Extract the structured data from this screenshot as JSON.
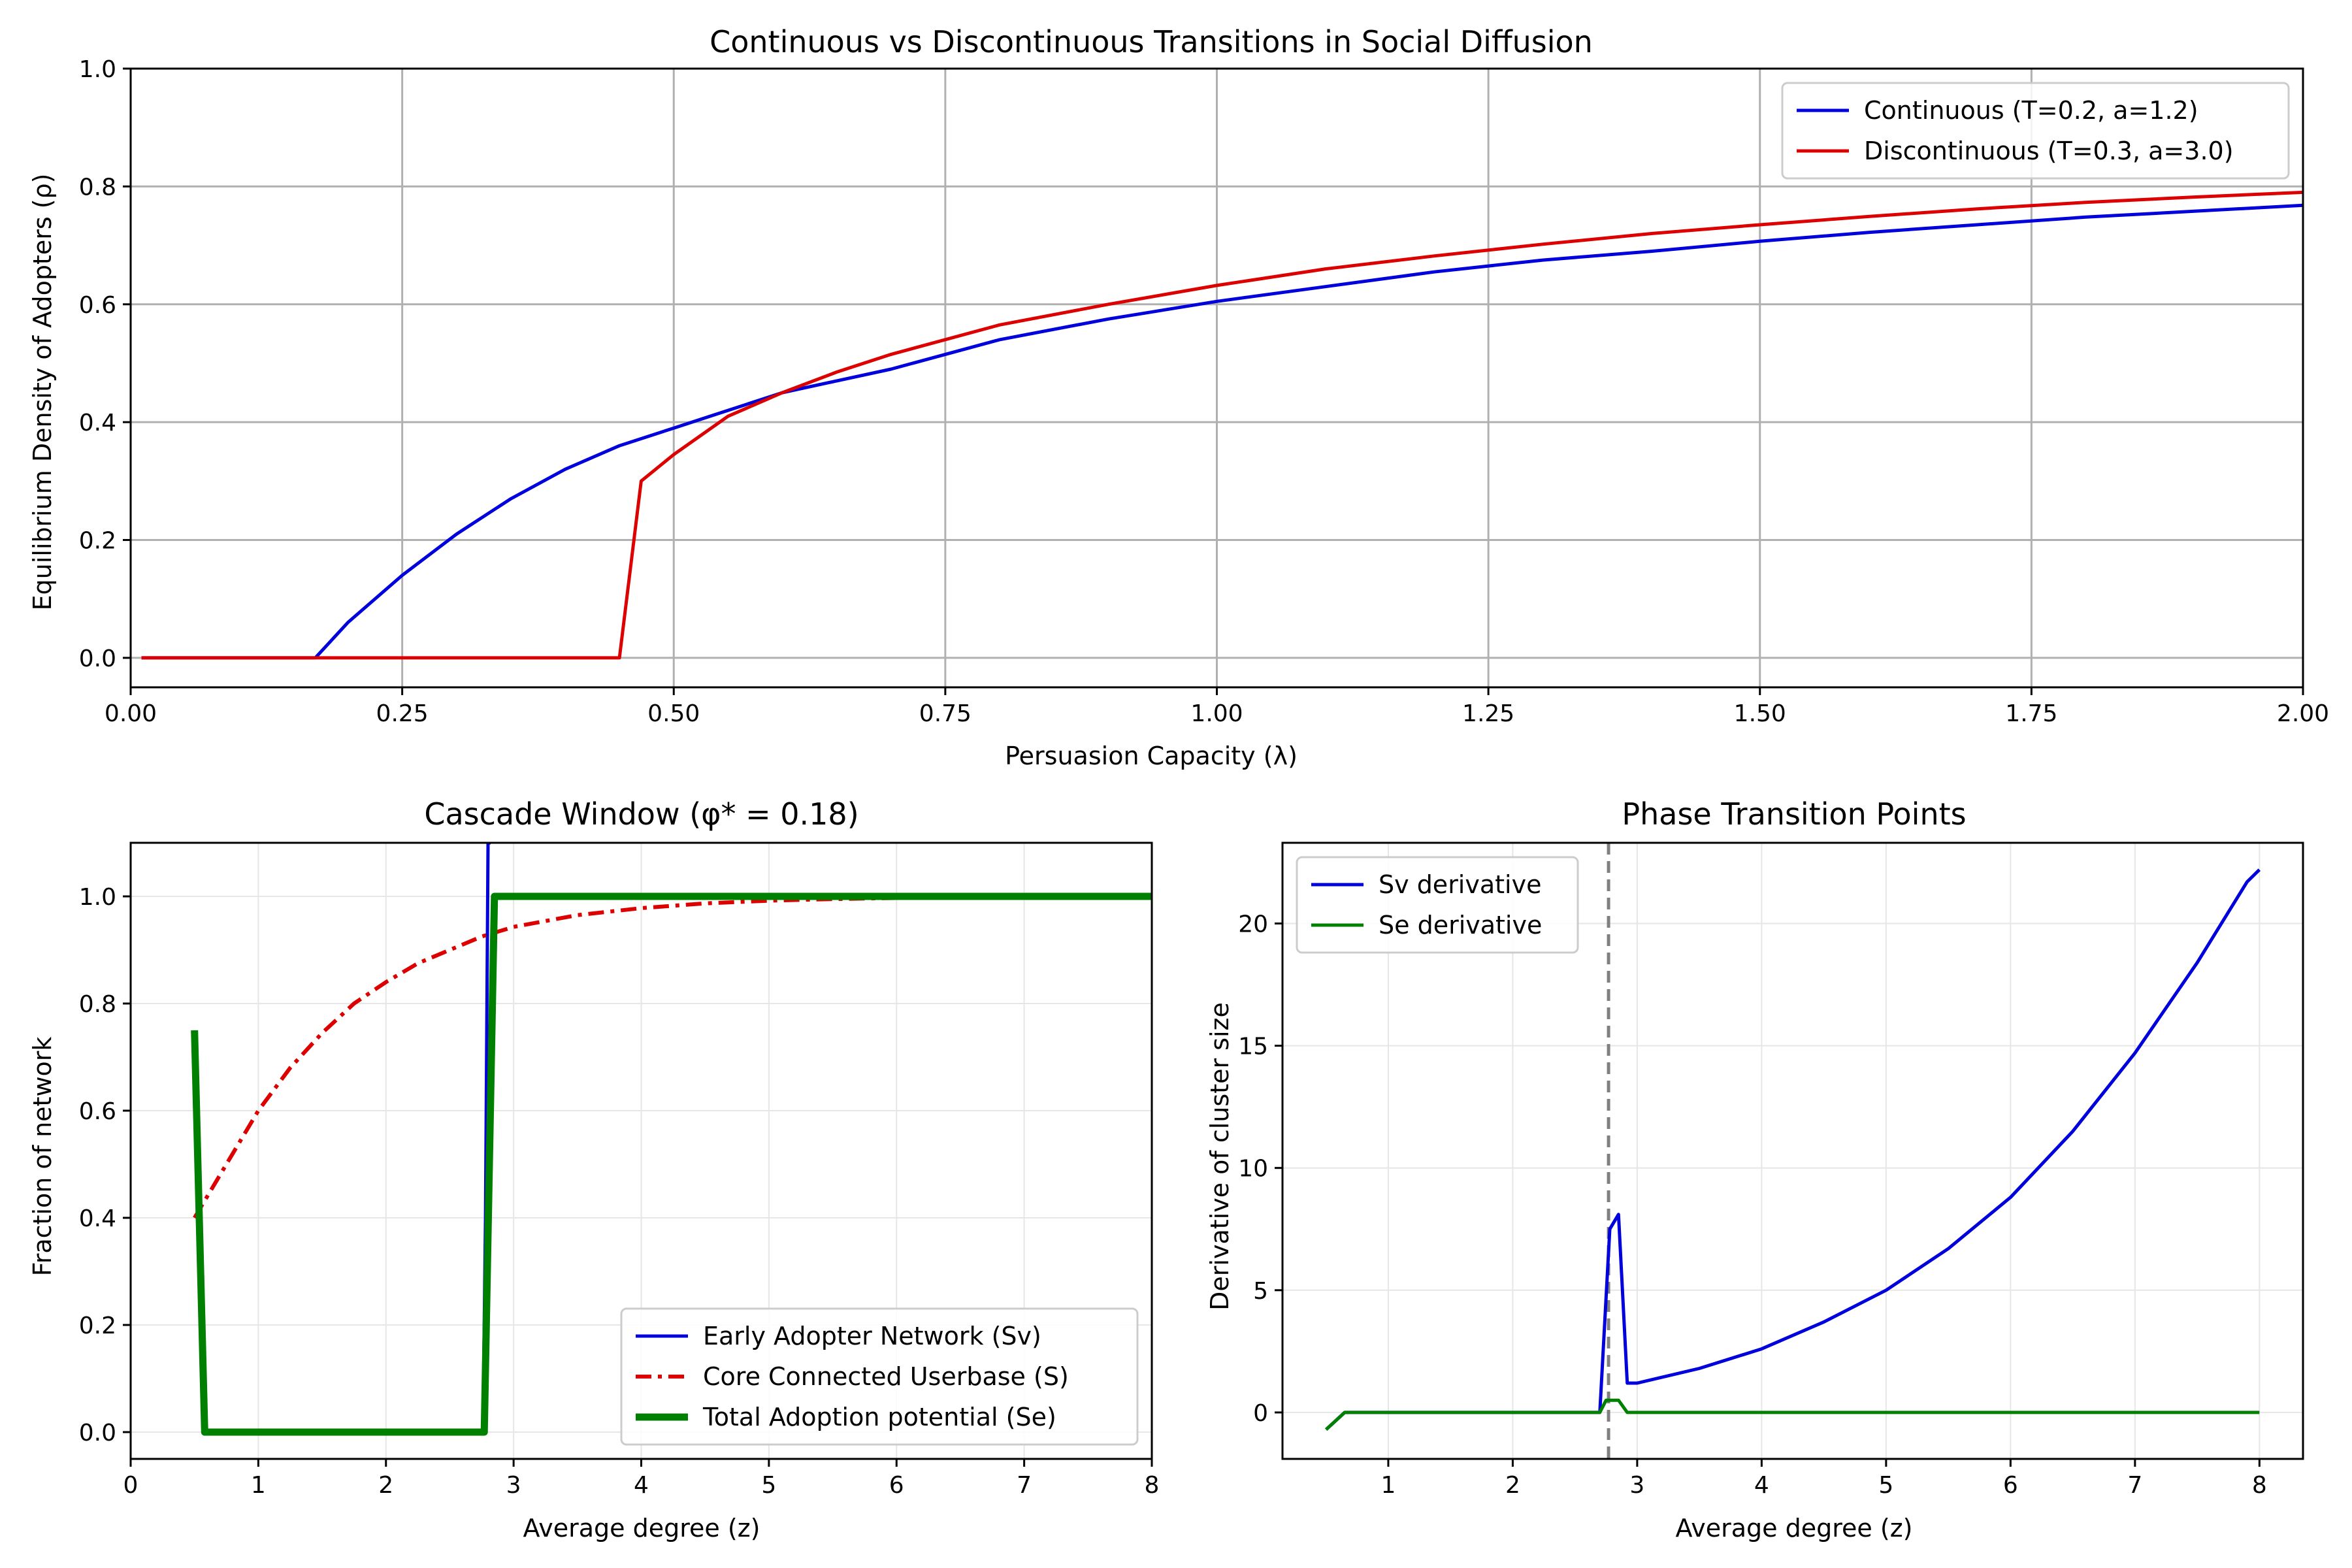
{
  "chart_data": [
    {
      "type": "line",
      "title": "Continuous vs Discontinuous Transitions in Social Diffusion",
      "xlabel": "Persuasion Capacity (λ)",
      "ylabel": "Equilibrium Density of Adopters (ρ)",
      "xlim": [
        0,
        2
      ],
      "ylim": [
        -0.05,
        1.0
      ],
      "xticks": [
        0,
        0.25,
        0.5,
        0.75,
        1.0,
        1.25,
        1.5,
        1.75,
        2.0
      ],
      "xtick_labels": [
        "0.00",
        "0.25",
        "0.50",
        "0.75",
        "1.00",
        "1.25",
        "1.50",
        "1.75",
        "2.00"
      ],
      "yticks": [
        0,
        0.2,
        0.4,
        0.6,
        0.8,
        1.0
      ],
      "ytick_labels": [
        "0.0",
        "0.2",
        "0.4",
        "0.6",
        "0.8",
        "1.0"
      ],
      "grid": true,
      "legend": "top-right",
      "series": [
        {
          "name": "Continuous (T=0.2, a=1.2)",
          "color": "#0000dd",
          "x": [
            0.01,
            0.17,
            0.2,
            0.25,
            0.3,
            0.35,
            0.4,
            0.45,
            0.5,
            0.6,
            0.7,
            0.8,
            0.9,
            1.0,
            1.1,
            1.2,
            1.3,
            1.4,
            1.5,
            1.6,
            1.7,
            1.8,
            1.9,
            2.0
          ],
          "y": [
            0.0,
            0.0,
            0.06,
            0.14,
            0.21,
            0.27,
            0.32,
            0.36,
            0.39,
            0.45,
            0.49,
            0.54,
            0.575,
            0.605,
            0.63,
            0.655,
            0.675,
            0.69,
            0.707,
            0.722,
            0.735,
            0.748,
            0.758,
            0.768
          ]
        },
        {
          "name": "Discontinuous (T=0.3, a=3.0)",
          "color": "#dd0000",
          "x": [
            0.01,
            0.45,
            0.47,
            0.5,
            0.55,
            0.6,
            0.65,
            0.7,
            0.8,
            0.9,
            1.0,
            1.1,
            1.2,
            1.3,
            1.4,
            1.5,
            1.6,
            1.7,
            1.8,
            1.9,
            2.0
          ],
          "y": [
            0.0,
            0.0,
            0.3,
            0.345,
            0.41,
            0.45,
            0.485,
            0.515,
            0.565,
            0.6,
            0.632,
            0.66,
            0.682,
            0.702,
            0.72,
            0.735,
            0.749,
            0.762,
            0.773,
            0.782,
            0.79
          ]
        }
      ]
    },
    {
      "type": "line",
      "title": "Cascade Window (φ* = 0.18)",
      "xlabel": "Average degree (z)",
      "ylabel": "Fraction of network",
      "xlim": [
        0,
        8
      ],
      "ylim": [
        -0.05,
        1.1
      ],
      "xticks": [
        0,
        1,
        2,
        3,
        4,
        5,
        6,
        7,
        8
      ],
      "xtick_labels": [
        "0",
        "1",
        "2",
        "3",
        "4",
        "5",
        "6",
        "7",
        "8"
      ],
      "yticks": [
        0,
        0.2,
        0.4,
        0.6,
        0.8,
        1.0
      ],
      "ytick_labels": [
        "0.0",
        "0.2",
        "0.4",
        "0.6",
        "0.8",
        "1.0"
      ],
      "grid": true,
      "legend": "bottom-right",
      "series": [
        {
          "name": "Early Adopter Network (Sv)",
          "color": "#0000dd",
          "style": "solid",
          "x": [
            2.76,
            2.78,
            2.8,
            2.82
          ],
          "y": [
            0.0,
            0.4,
            1.1,
            1.1
          ]
        },
        {
          "name": "Core Connected Userbase (S)",
          "color": "#dd0000",
          "style": "dashdot",
          "x": [
            0.5,
            0.75,
            1.0,
            1.25,
            1.5,
            1.75,
            2.0,
            2.25,
            2.5,
            2.75,
            3.0,
            3.5,
            4.0,
            4.5,
            5.0,
            5.5,
            6.0,
            7.0,
            8.0
          ],
          "y": [
            0.4,
            0.5,
            0.6,
            0.68,
            0.745,
            0.8,
            0.84,
            0.875,
            0.9,
            0.925,
            0.943,
            0.965,
            0.978,
            0.987,
            0.992,
            0.995,
            0.997,
            0.999,
            1.0
          ]
        },
        {
          "name": "Total Adoption potential (Se)",
          "color": "#008000",
          "style": "solid-thick",
          "x": [
            0.5,
            0.58,
            1.0,
            2.0,
            2.77,
            2.85,
            3.0,
            4.0,
            5.0,
            6.0,
            7.0,
            8.0
          ],
          "y": [
            0.75,
            0.0,
            0.0,
            0.0,
            0.0,
            1.0,
            1.0,
            1.0,
            1.0,
            1.0,
            1.0,
            1.0
          ]
        }
      ]
    },
    {
      "type": "line",
      "title": "Phase Transition Points",
      "xlabel": "Average degree (z)",
      "ylabel": "Derivative of cluster size",
      "xlim": [
        0.15,
        8.35
      ],
      "ylim": [
        -1.9,
        23.3
      ],
      "xticks": [
        1,
        2,
        3,
        4,
        5,
        6,
        7,
        8
      ],
      "xtick_labels": [
        "1",
        "2",
        "3",
        "4",
        "5",
        "6",
        "7",
        "8"
      ],
      "yticks": [
        0,
        5,
        10,
        15,
        20
      ],
      "ytick_labels": [
        "0",
        "5",
        "10",
        "15",
        "20"
      ],
      "grid": true,
      "legend": "top-left",
      "vline": {
        "x": 2.77,
        "color": "#808080",
        "style": "dashed"
      },
      "series": [
        {
          "name": "Sv derivative",
          "color": "#0000dd",
          "x": [
            0.5,
            0.65,
            1.0,
            2.0,
            2.7,
            2.78,
            2.85,
            2.92,
            3.0,
            3.5,
            4.0,
            4.5,
            5.0,
            5.5,
            6.0,
            6.5,
            7.0,
            7.5,
            7.9,
            8.0
          ],
          "y": [
            -0.7,
            0.0,
            0.0,
            0.0,
            0.0,
            7.5,
            8.1,
            1.2,
            1.2,
            1.8,
            2.6,
            3.7,
            5.0,
            6.7,
            8.8,
            11.5,
            14.7,
            18.4,
            21.7,
            22.2
          ]
        },
        {
          "name": "Se derivative",
          "color": "#008000",
          "x": [
            0.5,
            0.65,
            1.0,
            2.0,
            2.7,
            2.75,
            2.85,
            2.92,
            3.0,
            4.0,
            5.0,
            6.0,
            7.0,
            8.0
          ],
          "y": [
            -0.7,
            0.0,
            0.0,
            0.0,
            0.0,
            0.5,
            0.5,
            0.0,
            0.0,
            0.0,
            0.0,
            0.0,
            0.0,
            0.0
          ]
        }
      ]
    }
  ]
}
